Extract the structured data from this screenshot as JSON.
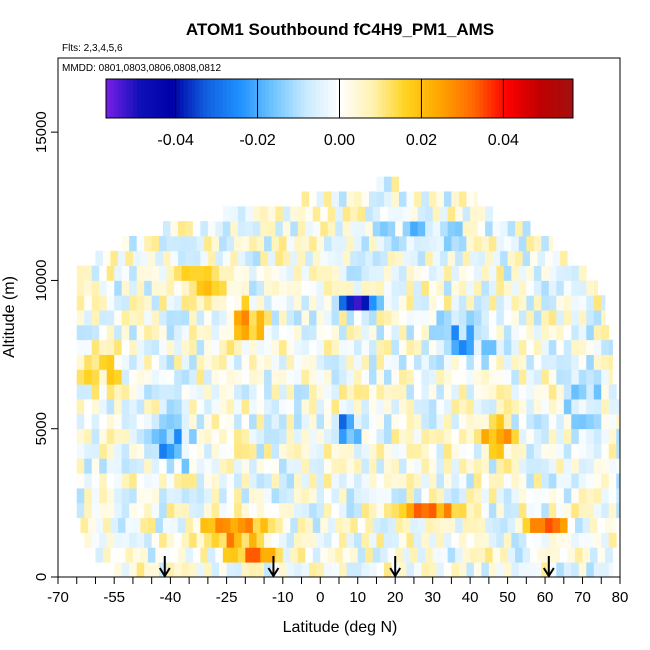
{
  "chart_data": {
    "type": "heatmap",
    "title": "ATOM1 Southbound fC4H9_PM1_AMS",
    "flights_note": "Flts: 2,3,4,5,6",
    "dates_note": "MMDD: 0801,0803,0806,0808,0812",
    "xlabel": "Latitude (deg N)",
    "ylabel": "Altitude (m)",
    "xlim": [
      -70,
      80
    ],
    "ylim": [
      0,
      17500
    ],
    "x_tick_labels": [
      "-70",
      "-55",
      "-40",
      "-25",
      "-10",
      "0",
      "10",
      "20",
      "30",
      "40",
      "50",
      "60",
      "70",
      "80"
    ],
    "y_tick_labels": [
      "0",
      "5000",
      "10000",
      "15000"
    ],
    "y_ticks": [
      0,
      5000,
      10000,
      15000
    ],
    "colorbar": {
      "range": [
        -0.057,
        0.057
      ],
      "tick_values": [
        -0.04,
        -0.02,
        0.0,
        0.02,
        0.04
      ],
      "tick_labels": [
        "-0.04",
        "-0.02",
        "0.00",
        "0.02",
        "0.04"
      ],
      "colors": [
        "#7a1fe8",
        "#1010b8",
        "#0000a8",
        "#1060e0",
        "#1e90ff",
        "#6ec4ff",
        "#c9eaff",
        "#ffffff",
        "#fff2b0",
        "#ffd21e",
        "#ffa500",
        "#ff6a00",
        "#ff0000",
        "#c00000",
        "#a21010"
      ]
    },
    "flight_markers_latitude": [
      -41.5,
      -12.5,
      20,
      61
    ],
    "grid_lat_bin_deg": 2,
    "grid_alt_bin_m": 500,
    "lat_extent_by_alt": [
      {
        "alt": 250,
        "lat_min": -55,
        "lat_max": 78
      },
      {
        "alt": 750,
        "lat_min": -60,
        "lat_max": 78
      },
      {
        "alt": 1250,
        "lat_min": -63,
        "lat_max": 79
      },
      {
        "alt": 1750,
        "lat_min": -64,
        "lat_max": 79
      },
      {
        "alt": 2250,
        "lat_min": -65,
        "lat_max": 80
      },
      {
        "alt": 2750,
        "lat_min": -65,
        "lat_max": 80
      },
      {
        "alt": 3250,
        "lat_min": -65,
        "lat_max": 80
      },
      {
        "alt": 3750,
        "lat_min": -65,
        "lat_max": 80
      },
      {
        "alt": 4250,
        "lat_min": -65,
        "lat_max": 80
      },
      {
        "alt": 4750,
        "lat_min": -65,
        "lat_max": 80
      },
      {
        "alt": 5250,
        "lat_min": -65,
        "lat_max": 80
      },
      {
        "alt": 5750,
        "lat_min": -65,
        "lat_max": 80
      },
      {
        "alt": 6250,
        "lat_min": -65,
        "lat_max": 79
      },
      {
        "alt": 6750,
        "lat_min": -65,
        "lat_max": 78
      },
      {
        "alt": 7250,
        "lat_min": -65,
        "lat_max": 78
      },
      {
        "alt": 7750,
        "lat_min": -65,
        "lat_max": 78
      },
      {
        "alt": 8250,
        "lat_min": -65,
        "lat_max": 77
      },
      {
        "alt": 8750,
        "lat_min": -65,
        "lat_max": 76
      },
      {
        "alt": 9250,
        "lat_min": -65,
        "lat_max": 76
      },
      {
        "alt": 9750,
        "lat_min": -65,
        "lat_max": 74
      },
      {
        "alt": 10250,
        "lat_min": -65,
        "lat_max": 71
      },
      {
        "alt": 10750,
        "lat_min": -60,
        "lat_max": 67
      },
      {
        "alt": 11250,
        "lat_min": -53,
        "lat_max": 62
      },
      {
        "alt": 11750,
        "lat_min": -42,
        "lat_max": 56
      },
      {
        "alt": 12250,
        "lat_min": -28,
        "lat_max": 46
      },
      {
        "alt": 12750,
        "lat_min": -5,
        "lat_max": 42
      },
      {
        "alt": 13250,
        "lat_min": 15,
        "lat_max": 22
      }
    ],
    "anomaly_features": [
      {
        "lat": -22,
        "alt": 1500,
        "value": 0.035,
        "lat_width": 22,
        "alt_width": 900
      },
      {
        "lat": -18,
        "alt": 600,
        "value": 0.05,
        "lat_width": 14,
        "alt_width": 500
      },
      {
        "lat": 30,
        "alt": 2250,
        "value": 0.03,
        "lat_width": 18,
        "alt_width": 700
      },
      {
        "lat": 60,
        "alt": 1750,
        "value": 0.04,
        "lat_width": 12,
        "alt_width": 500
      },
      {
        "lat": 48,
        "alt": 4750,
        "value": 0.035,
        "lat_width": 10,
        "alt_width": 1000
      },
      {
        "lat": 10,
        "alt": 9250,
        "value": -0.05,
        "lat_width": 10,
        "alt_width": 700
      },
      {
        "lat": 7,
        "alt": 5000,
        "value": -0.04,
        "lat_width": 8,
        "alt_width": 900
      },
      {
        "lat": -20,
        "alt": 8500,
        "value": 0.025,
        "lat_width": 12,
        "alt_width": 1500
      },
      {
        "lat": -40,
        "alt": 4500,
        "value": -0.02,
        "lat_width": 16,
        "alt_width": 2000
      },
      {
        "lat": 38,
        "alt": 8000,
        "value": -0.02,
        "lat_width": 20,
        "alt_width": 1500
      },
      {
        "lat": -30,
        "alt": 10000,
        "value": 0.02,
        "lat_width": 16,
        "alt_width": 800
      },
      {
        "lat": 25,
        "alt": 11500,
        "value": -0.012,
        "lat_width": 30,
        "alt_width": 1200
      },
      {
        "lat": -58,
        "alt": 7000,
        "value": 0.015,
        "lat_width": 10,
        "alt_width": 2000
      },
      {
        "lat": 70,
        "alt": 6500,
        "value": -0.012,
        "lat_width": 12,
        "alt_width": 3000
      }
    ]
  }
}
